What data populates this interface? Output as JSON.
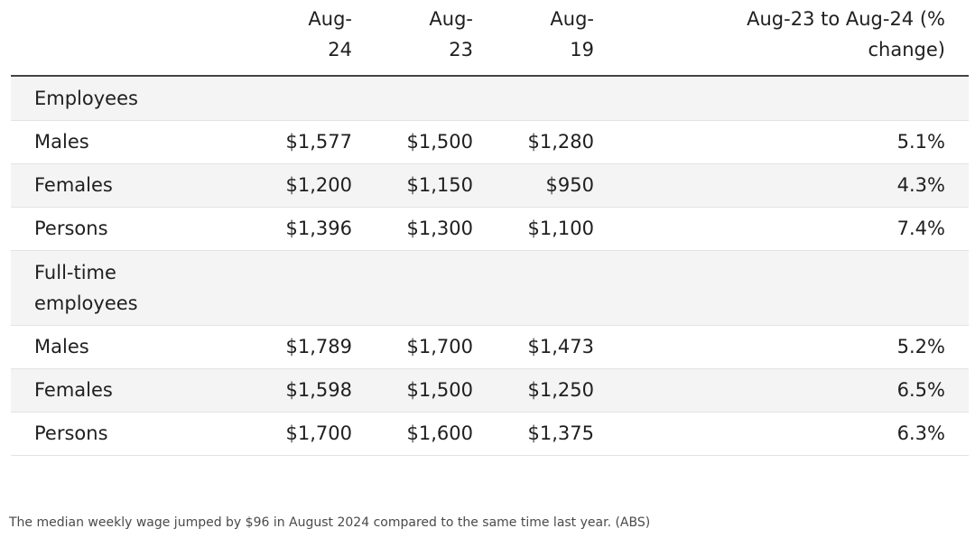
{
  "table": {
    "headers": [
      {
        "line1": "",
        "line2": ""
      },
      {
        "line1": "Aug-",
        "line2": "24"
      },
      {
        "line1": "Aug-",
        "line2": "23"
      },
      {
        "line1": "Aug-",
        "line2": "19"
      },
      {
        "line1": "Aug-23 to Aug-24 (%",
        "line2": "change)"
      }
    ],
    "sections": [
      {
        "title_lines": [
          "Employees"
        ],
        "rows": [
          {
            "label": "Males",
            "aug24": "$1,577",
            "aug23": "$1,500",
            "aug19": "$1,280",
            "change": "5.1%"
          },
          {
            "label": "Females",
            "aug24": "$1,200",
            "aug23": "$1,150",
            "aug19": "$950",
            "change": "4.3%"
          },
          {
            "label": "Persons",
            "aug24": "$1,396",
            "aug23": "$1,300",
            "aug19": "$1,100",
            "change": "7.4%"
          }
        ]
      },
      {
        "title_lines": [
          "Full-time",
          "employees"
        ],
        "rows": [
          {
            "label": "Males",
            "aug24": "$1,789",
            "aug23": "$1,700",
            "aug19": "$1,473",
            "change": "5.2%"
          },
          {
            "label": "Females",
            "aug24": "$1,598",
            "aug23": "$1,500",
            "aug19": "$1,250",
            "change": "6.5%"
          },
          {
            "label": "Persons",
            "aug24": "$1,700",
            "aug23": "$1,600",
            "aug19": "$1,375",
            "change": "6.3%"
          }
        ]
      }
    ]
  },
  "caption": "The median weekly wage jumped by $96 in August 2024 compared to the same time last year. (ABS)"
}
